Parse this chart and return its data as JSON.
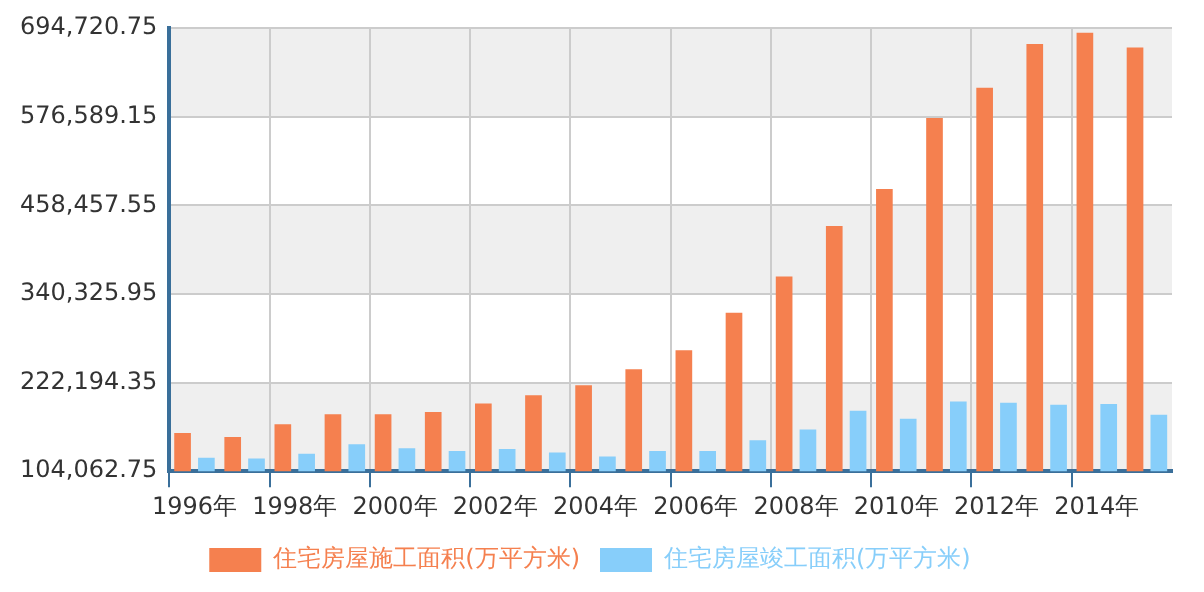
{
  "chart_data": {
    "type": "bar",
    "categories": [
      "1996年",
      null,
      "1998年",
      null,
      "2000年",
      null,
      "2002年",
      null,
      "2004年",
      null,
      "2006年",
      null,
      "2008年",
      null,
      "2010年",
      null,
      "2012年",
      null,
      "2014年",
      null
    ],
    "series": [
      {
        "name": "住宅房屋施工面积(万平方米)",
        "color": "#f5804f",
        "values": [
          155000,
          149700,
          166700,
          180100,
          180100,
          182800,
          194400,
          205200,
          218600,
          240100,
          265200,
          315300,
          363600,
          430800,
          480000,
          574800,
          615100,
          673300,
          688500,
          668800
        ]
      },
      {
        "name": "住宅房屋竣工面积(万平方米)",
        "color": "#87cefa",
        "values": [
          122000,
          121000,
          127300,
          139900,
          134500,
          130900,
          133600,
          129100,
          123800,
          130900,
          130900,
          145200,
          159600,
          184600,
          173900,
          197100,
          195400,
          192700,
          193600,
          179200
        ]
      }
    ],
    "ylim": [
      104062.75,
      694720.75
    ],
    "yticks": [
      {
        "value": 104062.75,
        "label": "104,062.75"
      },
      {
        "value": 222194.35,
        "label": "222,194.35"
      },
      {
        "value": 340325.95,
        "label": "340,325.95"
      },
      {
        "value": 458457.55,
        "label": "458,457.55"
      },
      {
        "value": 576589.15,
        "label": "576,589.15"
      },
      {
        "value": 694720.75,
        "label": "694,720.75"
      }
    ],
    "grid": true,
    "legend": "bottom"
  }
}
